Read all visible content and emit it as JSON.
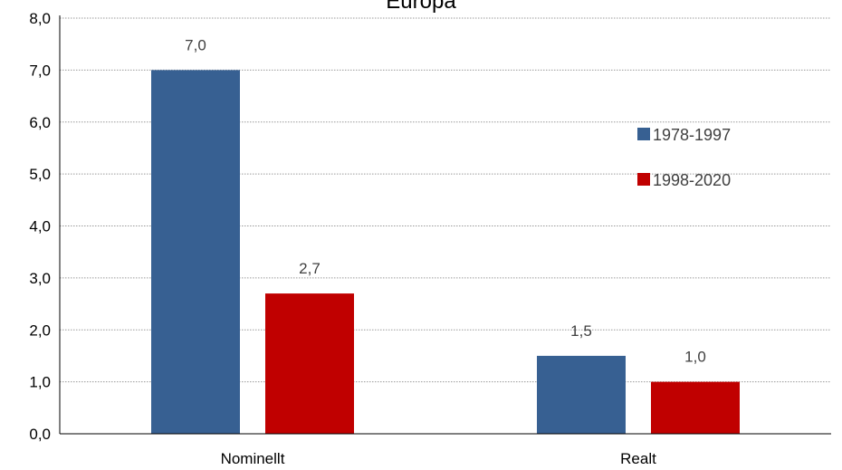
{
  "chart_data": {
    "type": "bar",
    "title": "Europa",
    "categories": [
      "Nominellt",
      "Realt"
    ],
    "series": [
      {
        "name": "1978-1997",
        "values": [
          7.0,
          1.5
        ],
        "color": "#376092"
      },
      {
        "name": "1998-2020",
        "values": [
          2.7,
          1.0
        ],
        "color": "#C00000"
      }
    ],
    "data_labels": [
      [
        "7,0",
        "1,5"
      ],
      [
        "2,7",
        "1,0"
      ]
    ],
    "ylim": [
      0,
      8
    ],
    "yticks": [
      0,
      1,
      2,
      3,
      4,
      5,
      6,
      7,
      8
    ],
    "ytick_labels": [
      "0,0",
      "1,0",
      "2,0",
      "3,0",
      "4,0",
      "5,0",
      "6,0",
      "7,0",
      "8,0"
    ],
    "grid": true,
    "legend_position": "right"
  }
}
